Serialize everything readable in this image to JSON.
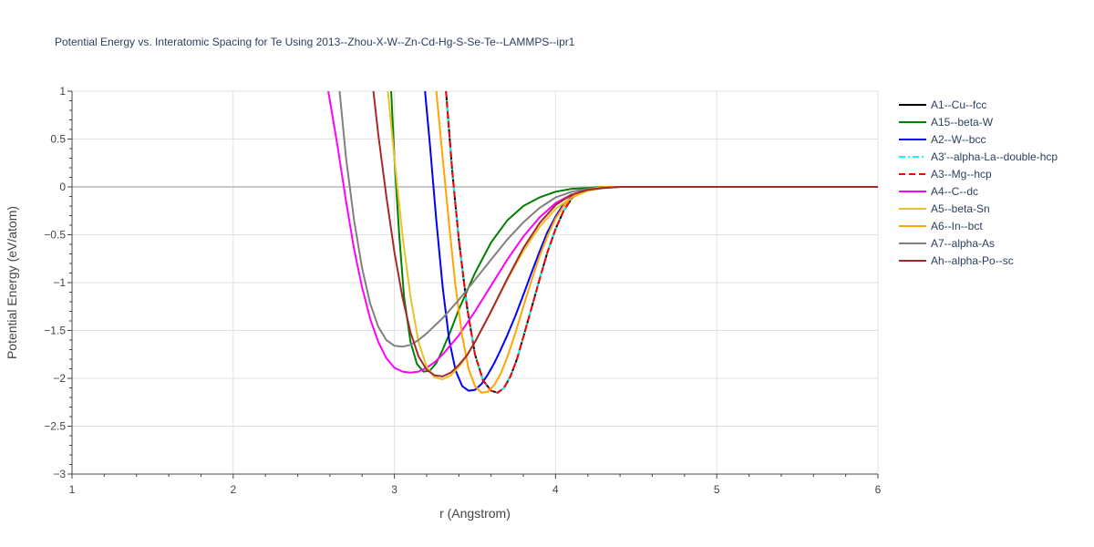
{
  "chart_data": {
    "type": "line",
    "title": "Potential Energy vs. Interatomic Spacing for Te Using 2013--Zhou-X-W--Zn-Cd-Hg-S-Se-Te--LAMMPS--ipr1",
    "xlabel": "r (Angstrom)",
    "ylabel": "Potential Energy (eV/atom)",
    "xlim": [
      1,
      6
    ],
    "ylim": [
      -3,
      1
    ],
    "xticks": [
      1,
      2,
      3,
      4,
      5,
      6
    ],
    "yticks": [
      1,
      0.5,
      0,
      -0.5,
      -1,
      -1.5,
      -2,
      -2.5,
      -3
    ],
    "ytick_labels": [
      "1",
      "0.5",
      "0",
      "−0.5",
      "−1",
      "−1.5",
      "−2",
      "−2.5",
      "−3"
    ],
    "grid": true,
    "legend_position": "right",
    "series": [
      {
        "name": "A1--Cu--fcc",
        "color": "#000000",
        "dash": "solid",
        "x": [
          3.32,
          3.36,
          3.4,
          3.45,
          3.5,
          3.55,
          3.6,
          3.64,
          3.68,
          3.72,
          3.76,
          3.8,
          3.85,
          3.9,
          3.95,
          4.0,
          4.05,
          4.1,
          4.15,
          4.2,
          4.25,
          4.3,
          4.35,
          4.4,
          4.5,
          5.0,
          6.0
        ],
        "y": [
          1.0,
          0.15,
          -0.55,
          -1.25,
          -1.75,
          -2.02,
          -2.13,
          -2.15,
          -2.1,
          -1.98,
          -1.8,
          -1.57,
          -1.27,
          -0.97,
          -0.68,
          -0.44,
          -0.25,
          -0.12,
          -0.05,
          -0.02,
          -0.01,
          0,
          0,
          0,
          0,
          0,
          0
        ]
      },
      {
        "name": "A15--beta-W",
        "color": "#008000",
        "dash": "solid",
        "x": [
          2.98,
          3.0,
          3.03,
          3.06,
          3.1,
          3.14,
          3.18,
          3.22,
          3.26,
          3.3,
          3.35,
          3.4,
          3.5,
          3.6,
          3.7,
          3.8,
          3.9,
          4.0,
          4.1,
          4.2,
          4.3,
          4.4,
          5.0,
          6.0
        ],
        "y": [
          1.0,
          0.3,
          -0.5,
          -1.15,
          -1.62,
          -1.85,
          -1.93,
          -1.92,
          -1.84,
          -1.7,
          -1.5,
          -1.28,
          -0.9,
          -0.58,
          -0.35,
          -0.2,
          -0.11,
          -0.05,
          -0.02,
          -0.01,
          0,
          0,
          0,
          0
        ]
      },
      {
        "name": "A2--W--bcc",
        "color": "#0000ff",
        "dash": "solid",
        "x": [
          3.19,
          3.22,
          3.26,
          3.3,
          3.34,
          3.38,
          3.42,
          3.46,
          3.5,
          3.54,
          3.58,
          3.62,
          3.66,
          3.7,
          3.75,
          3.8,
          3.85,
          3.9,
          3.95,
          4.0,
          4.05,
          4.1,
          4.15,
          4.2,
          4.25,
          4.3,
          4.35,
          4.4,
          5.0,
          6.0
        ],
        "y": [
          1.0,
          0.45,
          -0.35,
          -1.05,
          -1.6,
          -1.92,
          -2.08,
          -2.13,
          -2.12,
          -2.06,
          -1.96,
          -1.84,
          -1.7,
          -1.55,
          -1.35,
          -1.13,
          -0.9,
          -0.68,
          -0.47,
          -0.31,
          -0.18,
          -0.1,
          -0.05,
          -0.02,
          -0.01,
          0,
          0,
          0,
          0,
          0
        ]
      },
      {
        "name": "A3'--alpha-La--double-hcp",
        "color": "#00ffff",
        "dash": "dashdot",
        "x": [
          3.32,
          3.36,
          3.4,
          3.45,
          3.5,
          3.55,
          3.6,
          3.64,
          3.68,
          3.72,
          3.76,
          3.8,
          3.85,
          3.9,
          3.95,
          4.0,
          4.05,
          4.1,
          4.15,
          4.2,
          4.25,
          4.3,
          4.35,
          4.4,
          4.5,
          5.0,
          6.0
        ],
        "y": [
          1.0,
          0.15,
          -0.55,
          -1.25,
          -1.75,
          -2.02,
          -2.13,
          -2.15,
          -2.1,
          -1.98,
          -1.8,
          -1.57,
          -1.27,
          -0.97,
          -0.68,
          -0.44,
          -0.25,
          -0.12,
          -0.05,
          -0.02,
          -0.01,
          0,
          0,
          0,
          0,
          0,
          0
        ]
      },
      {
        "name": "A3--Mg--hcp",
        "color": "#ff0000",
        "dash": "dash",
        "x": [
          3.32,
          3.36,
          3.4,
          3.45,
          3.5,
          3.55,
          3.6,
          3.64,
          3.68,
          3.72,
          3.76,
          3.8,
          3.85,
          3.9,
          3.95,
          4.0,
          4.05,
          4.1,
          4.15,
          4.2,
          4.25,
          4.3,
          4.35,
          4.4,
          4.5,
          5.0,
          6.0
        ],
        "y": [
          1.0,
          0.15,
          -0.55,
          -1.25,
          -1.75,
          -2.02,
          -2.13,
          -2.15,
          -2.1,
          -1.98,
          -1.8,
          -1.57,
          -1.27,
          -0.97,
          -0.68,
          -0.44,
          -0.25,
          -0.12,
          -0.05,
          -0.02,
          -0.01,
          0,
          0,
          0,
          0,
          0,
          0
        ]
      },
      {
        "name": "A4--C--dc",
        "color": "#ff00ff",
        "dash": "solid",
        "x": [
          2.59,
          2.65,
          2.7,
          2.75,
          2.8,
          2.85,
          2.9,
          2.95,
          3.0,
          3.05,
          3.1,
          3.15,
          3.2,
          3.25,
          3.3,
          3.4,
          3.5,
          3.6,
          3.7,
          3.8,
          3.9,
          4.0,
          4.1,
          4.2,
          4.3,
          4.4,
          5.0,
          6.0
        ],
        "y": [
          1.0,
          0.4,
          -0.15,
          -0.65,
          -1.05,
          -1.38,
          -1.62,
          -1.79,
          -1.89,
          -1.93,
          -1.94,
          -1.93,
          -1.89,
          -1.83,
          -1.75,
          -1.55,
          -1.3,
          -1.03,
          -0.76,
          -0.52,
          -0.32,
          -0.17,
          -0.08,
          -0.03,
          -0.01,
          0,
          0,
          0
        ]
      },
      {
        "name": "A5--beta-Sn",
        "color": "#e6c228",
        "dash": "solid",
        "x": [
          2.96,
          3.0,
          3.05,
          3.1,
          3.15,
          3.2,
          3.25,
          3.3,
          3.35,
          3.4,
          3.45,
          3.5,
          3.6,
          3.7,
          3.8,
          3.9,
          4.0,
          4.1,
          4.2,
          4.3,
          4.4,
          5.0,
          6.0
        ],
        "y": [
          1.0,
          0.3,
          -0.5,
          -1.15,
          -1.62,
          -1.88,
          -1.99,
          -2.01,
          -1.97,
          -1.88,
          -1.76,
          -1.62,
          -1.3,
          -0.97,
          -0.67,
          -0.42,
          -0.23,
          -0.11,
          -0.04,
          -0.01,
          0,
          0,
          0
        ]
      },
      {
        "name": "A6--In--bct",
        "color": "#ffa500",
        "dash": "solid",
        "x": [
          3.26,
          3.3,
          3.34,
          3.38,
          3.42,
          3.46,
          3.5,
          3.54,
          3.58,
          3.62,
          3.66,
          3.7,
          3.75,
          3.8,
          3.85,
          3.9,
          3.95,
          4.0,
          4.05,
          4.1,
          4.15,
          4.2,
          4.25,
          4.3,
          4.35,
          4.4,
          5.0,
          6.0
        ],
        "y": [
          1.0,
          0.3,
          -0.4,
          -1.05,
          -1.55,
          -1.9,
          -2.08,
          -2.15,
          -2.14,
          -2.07,
          -1.95,
          -1.78,
          -1.53,
          -1.25,
          -0.98,
          -0.73,
          -0.51,
          -0.33,
          -0.2,
          -0.11,
          -0.05,
          -0.02,
          -0.01,
          0,
          0,
          0,
          0,
          0
        ]
      },
      {
        "name": "A7--alpha-As",
        "color": "#808080",
        "dash": "solid",
        "x": [
          2.66,
          2.7,
          2.75,
          2.8,
          2.85,
          2.9,
          2.95,
          3.0,
          3.05,
          3.1,
          3.15,
          3.2,
          3.3,
          3.4,
          3.5,
          3.6,
          3.7,
          3.8,
          3.9,
          4.0,
          4.1,
          4.2,
          4.3,
          4.4,
          5.0,
          6.0
        ],
        "y": [
          1.0,
          0.3,
          -0.35,
          -0.85,
          -1.22,
          -1.46,
          -1.6,
          -1.66,
          -1.67,
          -1.65,
          -1.6,
          -1.53,
          -1.37,
          -1.18,
          -0.97,
          -0.76,
          -0.55,
          -0.37,
          -0.22,
          -0.11,
          -0.05,
          -0.02,
          -0.01,
          0,
          0,
          0
        ]
      },
      {
        "name": "Ah--alpha-Po--sc",
        "color": "#a52a2a",
        "dash": "solid",
        "x": [
          2.87,
          2.9,
          2.95,
          3.0,
          3.05,
          3.1,
          3.15,
          3.2,
          3.25,
          3.3,
          3.35,
          3.4,
          3.45,
          3.5,
          3.6,
          3.7,
          3.8,
          3.9,
          4.0,
          4.1,
          4.2,
          4.3,
          4.4,
          5.0,
          6.0
        ],
        "y": [
          1.0,
          0.55,
          -0.1,
          -0.68,
          -1.15,
          -1.52,
          -1.77,
          -1.91,
          -1.97,
          -1.98,
          -1.94,
          -1.86,
          -1.76,
          -1.62,
          -1.3,
          -0.96,
          -0.64,
          -0.38,
          -0.19,
          -0.08,
          -0.03,
          -0.01,
          0,
          0,
          0
        ]
      }
    ]
  }
}
